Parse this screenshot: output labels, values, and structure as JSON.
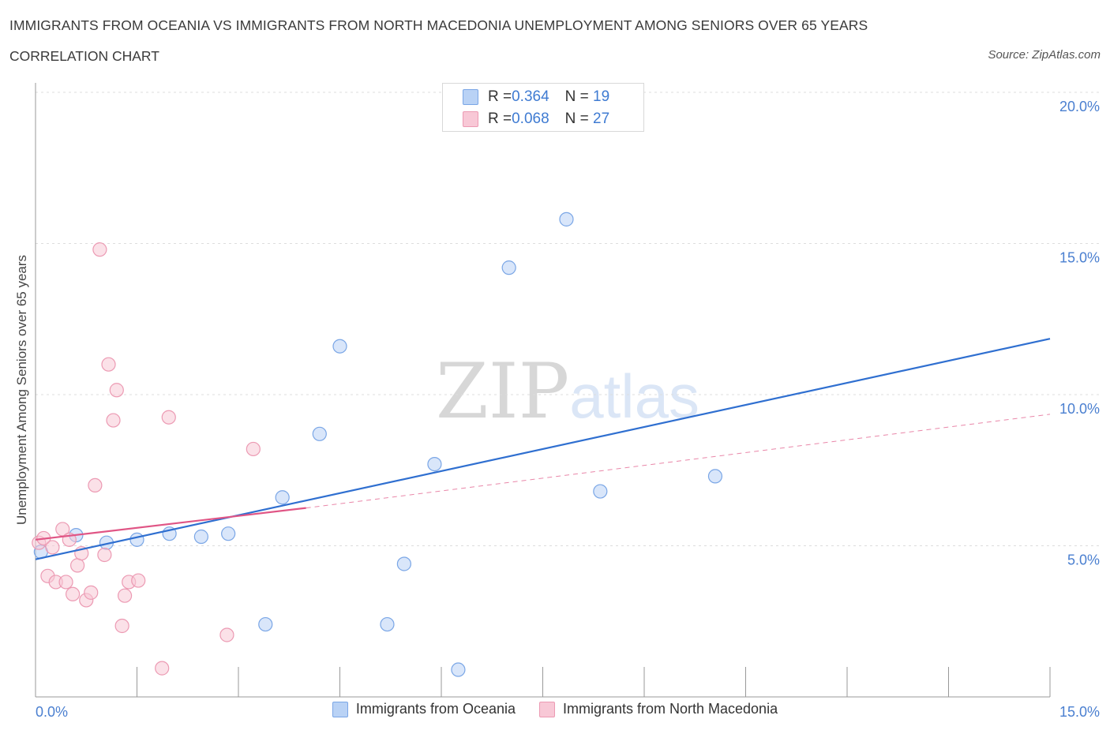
{
  "title": "IMMIGRANTS FROM OCEANIA VS IMMIGRANTS FROM NORTH MACEDONIA UNEMPLOYMENT AMONG SENIORS OVER 65 YEARS",
  "subtitle": "CORRELATION CHART",
  "source": "Source: ZipAtlas.com",
  "watermark": {
    "zip": "ZIP",
    "atlas": "atlas"
  },
  "colors": {
    "oceania_fill": "#b9d2f5",
    "oceania_stroke": "#7aa6e6",
    "oceania_line": "#2f6fd0",
    "macedonia_fill": "#f8c8d6",
    "macedonia_stroke": "#ec9ab3",
    "macedonia_line": "#e05585",
    "axis_text": "#4a7fd0",
    "grid": "#dddddd"
  },
  "legend": {
    "rows": [
      {
        "r_label": "R = ",
        "r_value": "0.364",
        "n_label": "N = ",
        "n_value": "19"
      },
      {
        "r_label": "R = ",
        "r_value": "0.068",
        "n_label": "N = ",
        "n_value": "27"
      }
    ]
  },
  "chart_data": {
    "type": "scatter",
    "title": "IMMIGRANTS FROM OCEANIA VS IMMIGRANTS FROM NORTH MACEDONIA UNEMPLOYMENT AMONG SENIORS OVER 65 YEARS",
    "xlabel": "",
    "ylabel": "Unemployment Among Seniors over 65 years",
    "xlim": [
      0,
      15
    ],
    "ylim": [
      0,
      20
    ],
    "x_tick_labels": [
      "0.0%",
      "15.0%"
    ],
    "y_ticks": [
      5,
      10,
      15,
      20
    ],
    "y_tick_labels": [
      "5.0%",
      "10.0%",
      "15.0%",
      "20.0%"
    ],
    "grid": true,
    "series": [
      {
        "name": "Immigrants from Oceania",
        "r": 0.364,
        "n": 19,
        "trend": {
          "x": [
            0,
            15
          ],
          "y": [
            4.55,
            11.85
          ]
        },
        "points": [
          {
            "x": 0.08,
            "y": 4.8
          },
          {
            "x": 0.6,
            "y": 5.35
          },
          {
            "x": 1.05,
            "y": 5.1
          },
          {
            "x": 1.5,
            "y": 5.2
          },
          {
            "x": 1.98,
            "y": 5.4
          },
          {
            "x": 2.45,
            "y": 5.3
          },
          {
            "x": 2.85,
            "y": 5.4
          },
          {
            "x": 3.4,
            "y": 2.4
          },
          {
            "x": 3.65,
            "y": 6.6
          },
          {
            "x": 4.2,
            "y": 8.7
          },
          {
            "x": 4.5,
            "y": 11.6
          },
          {
            "x": 5.2,
            "y": 2.4
          },
          {
            "x": 5.45,
            "y": 4.4
          },
          {
            "x": 5.9,
            "y": 7.7
          },
          {
            "x": 6.25,
            "y": 0.9
          },
          {
            "x": 7.0,
            "y": 14.2
          },
          {
            "x": 7.85,
            "y": 15.8
          },
          {
            "x": 8.35,
            "y": 6.8
          },
          {
            "x": 10.05,
            "y": 7.3
          }
        ]
      },
      {
        "name": "Immigrants from North Macedonia",
        "r": 0.068,
        "n": 27,
        "trend": {
          "x": [
            0,
            4.0
          ],
          "y": [
            5.2,
            6.25
          ]
        },
        "trend_dashed": {
          "x": [
            4.0,
            15
          ],
          "y": [
            6.25,
            9.35
          ]
        },
        "points": [
          {
            "x": 0.05,
            "y": 5.1
          },
          {
            "x": 0.12,
            "y": 5.25
          },
          {
            "x": 0.18,
            "y": 4.0
          },
          {
            "x": 0.25,
            "y": 4.95
          },
          {
            "x": 0.3,
            "y": 3.8
          },
          {
            "x": 0.4,
            "y": 5.55
          },
          {
            "x": 0.45,
            "y": 3.8
          },
          {
            "x": 0.5,
            "y": 5.2
          },
          {
            "x": 0.55,
            "y": 3.4
          },
          {
            "x": 0.62,
            "y": 4.35
          },
          {
            "x": 0.68,
            "y": 4.75
          },
          {
            "x": 0.75,
            "y": 3.2
          },
          {
            "x": 0.82,
            "y": 3.45
          },
          {
            "x": 0.88,
            "y": 7.0
          },
          {
            "x": 0.95,
            "y": 14.8
          },
          {
            "x": 1.02,
            "y": 4.7
          },
          {
            "x": 1.08,
            "y": 11.0
          },
          {
            "x": 1.15,
            "y": 9.15
          },
          {
            "x": 1.2,
            "y": 10.15
          },
          {
            "x": 1.28,
            "y": 2.35
          },
          {
            "x": 1.32,
            "y": 3.35
          },
          {
            "x": 1.38,
            "y": 3.8
          },
          {
            "x": 1.52,
            "y": 3.85
          },
          {
            "x": 1.87,
            "y": 0.95
          },
          {
            "x": 1.97,
            "y": 9.25
          },
          {
            "x": 2.83,
            "y": 2.05
          },
          {
            "x": 3.22,
            "y": 8.2
          }
        ]
      }
    ]
  }
}
